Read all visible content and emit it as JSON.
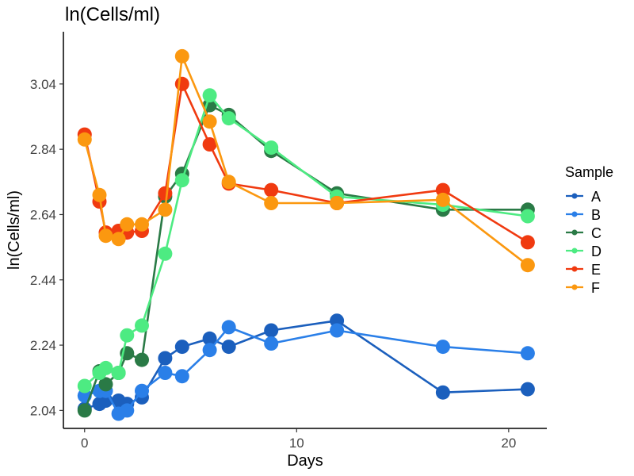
{
  "chart_data": {
    "type": "line",
    "title": "ln(Cells/ml)",
    "xlabel": "Days",
    "ylabel": "ln(Cells/ml)",
    "xlim": [
      -1,
      21.8
    ],
    "ylim": [
      1.985,
      3.2
    ],
    "xticks": [
      0,
      10,
      20
    ],
    "xtick_labels": [
      "0",
      "10",
      "20"
    ],
    "yticks": [
      2.04,
      2.24,
      2.44,
      2.64,
      2.84,
      3.04
    ],
    "ytick_labels": [
      "2.04",
      "2.24",
      "2.44",
      "2.64",
      "2.84",
      "3.04"
    ],
    "grid": false,
    "legend": {
      "title": "Sample",
      "position": "right"
    },
    "series": [
      {
        "name": "A",
        "color": "#1b5fbd",
        "points": [
          [
            0,
            2.045
          ],
          [
            0.7,
            2.06
          ],
          [
            1.0,
            2.07
          ],
          [
            1.6,
            2.07
          ],
          [
            2.0,
            2.06
          ],
          [
            2.7,
            2.08
          ],
          [
            3.8,
            2.2
          ],
          [
            4.6,
            2.235
          ],
          [
            5.9,
            2.26
          ],
          [
            6.8,
            2.235
          ],
          [
            8.8,
            2.285
          ],
          [
            11.9,
            2.315
          ],
          [
            16.9,
            2.095
          ],
          [
            20.9,
            2.105
          ]
        ]
      },
      {
        "name": "B",
        "color": "#2a7fe8",
        "points": [
          [
            0,
            2.085
          ],
          [
            0.7,
            2.1
          ],
          [
            1.0,
            2.1
          ],
          [
            1.6,
            2.03
          ],
          [
            2.0,
            2.04
          ],
          [
            2.7,
            2.1
          ],
          [
            3.8,
            2.155
          ],
          [
            4.6,
            2.145
          ],
          [
            5.9,
            2.225
          ],
          [
            6.8,
            2.295
          ],
          [
            8.8,
            2.245
          ],
          [
            11.9,
            2.285
          ],
          [
            16.9,
            2.235
          ],
          [
            20.9,
            2.215
          ]
        ]
      },
      {
        "name": "C",
        "color": "#2a7a46",
        "points": [
          [
            0,
            2.04
          ],
          [
            0.7,
            2.16
          ],
          [
            1.0,
            2.12
          ],
          [
            1.6,
            2.155
          ],
          [
            2.0,
            2.215
          ],
          [
            2.7,
            2.195
          ],
          [
            3.8,
            2.695
          ],
          [
            4.6,
            2.765
          ],
          [
            5.9,
            2.975
          ],
          [
            6.8,
            2.945
          ],
          [
            8.8,
            2.835
          ],
          [
            11.9,
            2.705
          ],
          [
            16.9,
            2.655
          ],
          [
            20.9,
            2.655
          ]
        ]
      },
      {
        "name": "D",
        "color": "#4deb82",
        "points": [
          [
            0,
            2.115
          ],
          [
            0.7,
            2.155
          ],
          [
            1.0,
            2.17
          ],
          [
            1.6,
            2.155
          ],
          [
            2.0,
            2.27
          ],
          [
            2.7,
            2.3
          ],
          [
            3.8,
            2.52
          ],
          [
            4.6,
            2.745
          ],
          [
            5.9,
            3.005
          ],
          [
            6.8,
            2.935
          ],
          [
            8.8,
            2.845
          ],
          [
            11.9,
            2.695
          ],
          [
            16.9,
            2.67
          ],
          [
            20.9,
            2.635
          ]
        ]
      },
      {
        "name": "E",
        "color": "#f03a10",
        "points": [
          [
            0,
            2.885
          ],
          [
            0.7,
            2.68
          ],
          [
            1.0,
            2.585
          ],
          [
            1.6,
            2.59
          ],
          [
            2.0,
            2.585
          ],
          [
            2.7,
            2.59
          ],
          [
            3.8,
            2.705
          ],
          [
            4.6,
            3.04
          ],
          [
            5.9,
            2.855
          ],
          [
            6.8,
            2.735
          ],
          [
            8.8,
            2.715
          ],
          [
            11.9,
            2.675
          ],
          [
            16.9,
            2.715
          ],
          [
            20.9,
            2.555
          ]
        ]
      },
      {
        "name": "F",
        "color": "#fb9810",
        "points": [
          [
            0,
            2.87
          ],
          [
            0.7,
            2.7
          ],
          [
            1.0,
            2.575
          ],
          [
            1.6,
            2.565
          ],
          [
            2.0,
            2.61
          ],
          [
            2.7,
            2.61
          ],
          [
            3.8,
            2.655
          ],
          [
            4.6,
            3.125
          ],
          [
            5.9,
            2.925
          ],
          [
            6.8,
            2.74
          ],
          [
            8.8,
            2.675
          ],
          [
            11.9,
            2.675
          ],
          [
            16.9,
            2.685
          ],
          [
            20.9,
            2.485
          ]
        ]
      }
    ]
  }
}
